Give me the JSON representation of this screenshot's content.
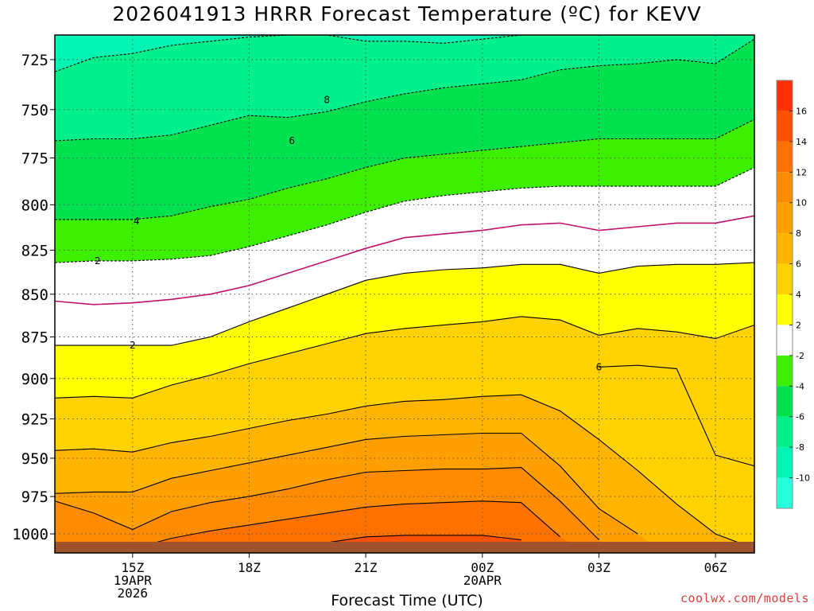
{
  "title": "2026041913 HRRR Forecast Temperature (ºC) for KEVV",
  "credit": "coolwx.com/models",
  "chart_data": {
    "type": "heatmap",
    "title": "2026041913 HRRR Forecast Temperature (ºC) for KEVV",
    "xlabel": "Forecast Time (UTC)",
    "ylabel": "",
    "x_unit": "hours from 13Z 19APR2026",
    "xlim": [
      0,
      18
    ],
    "ylim_hPa": [
      1013,
      713
    ],
    "y_scale": "log-pressure (decreasing upward)",
    "grid": true,
    "x_ticks": [
      {
        "x": 2,
        "lines": [
          "15Z",
          "19APR",
          "2026"
        ]
      },
      {
        "x": 5,
        "lines": [
          "18Z"
        ]
      },
      {
        "x": 8,
        "lines": [
          "21Z"
        ]
      },
      {
        "x": 11,
        "lines": [
          "00Z",
          "20APR"
        ]
      },
      {
        "x": 14,
        "lines": [
          "03Z"
        ]
      },
      {
        "x": 17,
        "lines": [
          "06Z"
        ]
      }
    ],
    "y_ticks": [
      725,
      750,
      775,
      800,
      825,
      850,
      875,
      900,
      925,
      950,
      975,
      1000
    ],
    "colorbar": {
      "labels": [
        "16",
        "14",
        "12",
        "10",
        "8",
        "6",
        "4",
        "2",
        "-2",
        "-4",
        "-6",
        "-8",
        "-10"
      ],
      "bands": [
        {
          "lo": 16,
          "hi": 18,
          "color": "#ff3200"
        },
        {
          "lo": 14,
          "hi": 16,
          "color": "#ff5000"
        },
        {
          "lo": 12,
          "hi": 14,
          "color": "#ff7200"
        },
        {
          "lo": 10,
          "hi": 12,
          "color": "#ff8c00"
        },
        {
          "lo": 8,
          "hi": 10,
          "color": "#ffa000"
        },
        {
          "lo": 6,
          "hi": 8,
          "color": "#ffb400"
        },
        {
          "lo": 4,
          "hi": 6,
          "color": "#ffd200"
        },
        {
          "lo": 2,
          "hi": 4,
          "color": "#ffff00"
        },
        {
          "lo": -2,
          "hi": 2,
          "color": "#ffffff"
        },
        {
          "lo": -4,
          "hi": -2,
          "color": "#3cf000"
        },
        {
          "lo": -6,
          "hi": -4,
          "color": "#00e150"
        },
        {
          "lo": -8,
          "hi": -6,
          "color": "#00f08c"
        },
        {
          "lo": -10,
          "hi": -8,
          "color": "#00f5b4"
        },
        {
          "lo": -12,
          "hi": -10,
          "color": "#28ffdc"
        }
      ]
    },
    "ground_color": "#a0522d",
    "contour_x": [
      0,
      1,
      2,
      3,
      4,
      5,
      6,
      7,
      8,
      9,
      10,
      11,
      12,
      13,
      14,
      15,
      16,
      17,
      18
    ],
    "contours": [
      {
        "value": 14,
        "style": "solid",
        "color": "#000000",
        "p": [
          null,
          null,
          null,
          null,
          null,
          null,
          null,
          1006,
          1002,
          1001,
          1001,
          1001,
          1004,
          null,
          null,
          null,
          null,
          null,
          null
        ]
      },
      {
        "value": 12,
        "style": "solid",
        "color": "#000000",
        "p": [
          null,
          null,
          1010,
          1003,
          998,
          994,
          990,
          986,
          982,
          980,
          979,
          978,
          979,
          1002,
          null,
          null,
          null,
          null,
          null
        ]
      },
      {
        "value": 10,
        "style": "solid",
        "color": "#000000",
        "p": [
          978,
          986,
          997,
          985,
          979,
          975,
          970,
          964,
          959,
          958,
          957,
          957,
          956,
          978,
          1004,
          null,
          null,
          null,
          null
        ]
      },
      {
        "value": 8,
        "style": "solid",
        "color": "#000000",
        "p": [
          973,
          972,
          972,
          963,
          958,
          953,
          948,
          943,
          938,
          936,
          935,
          934,
          934,
          955,
          983,
          1000,
          null,
          null,
          null
        ]
      },
      {
        "value": 6,
        "style": "solid",
        "color": "#000000",
        "p": [
          945,
          944,
          946,
          940,
          936,
          931,
          926,
          922,
          917,
          914,
          913,
          911,
          910,
          920,
          938,
          958,
          980,
          1000,
          1010
        ]
      },
      {
        "value": 6,
        "style": "solid",
        "color": "#000000",
        "p": [
          null,
          null,
          null,
          null,
          null,
          null,
          null,
          null,
          null,
          null,
          null,
          null,
          null,
          null,
          893,
          892,
          894,
          948,
          955
        ]
      },
      {
        "value": 4,
        "style": "solid",
        "color": "#000000",
        "p": [
          912,
          911,
          912,
          904,
          898,
          891,
          885,
          879,
          873,
          870,
          868,
          866,
          863,
          865,
          874,
          870,
          872,
          876,
          868
        ]
      },
      {
        "value": 2,
        "style": "solid",
        "color": "#000000",
        "p": [
          880,
          880,
          880,
          880,
          875,
          866,
          858,
          850,
          842,
          838,
          836,
          835,
          833,
          833,
          838,
          834,
          833,
          833,
          832
        ]
      },
      {
        "value": 0,
        "style": "solid",
        "color": "#c0106a",
        "p": [
          854,
          856,
          855,
          853,
          850,
          845,
          838,
          831,
          824,
          818,
          816,
          814,
          811,
          810,
          814,
          812,
          810,
          810,
          806
        ]
      },
      {
        "value": -2,
        "style": "dashed",
        "color": "#000000",
        "p": [
          832,
          831,
          831,
          830,
          828,
          823,
          817,
          811,
          804,
          798,
          795,
          793,
          791,
          790,
          790,
          790,
          790,
          790,
          780
        ]
      },
      {
        "value": -4,
        "style": "dashed",
        "color": "#000000",
        "p": [
          808,
          808,
          808,
          806,
          801,
          797,
          791,
          786,
          780,
          775,
          773,
          771,
          769,
          767,
          765,
          765,
          765,
          765,
          755
        ]
      },
      {
        "value": -6,
        "style": "dashed",
        "color": "#000000",
        "p": [
          766,
          765,
          765,
          763,
          758,
          753,
          754,
          751,
          746,
          742,
          739,
          737,
          735,
          730,
          728,
          727,
          725,
          727,
          715
        ]
      },
      {
        "value": -8,
        "style": "dashed",
        "color": "#000000",
        "p": [
          731,
          724,
          722,
          718,
          716,
          714,
          713,
          713,
          716,
          716,
          717,
          715,
          713,
          713,
          713,
          713,
          713,
          713,
          713
        ]
      }
    ],
    "contour_labels": [
      {
        "text": "8",
        "x": 7.0,
        "p": 745
      },
      {
        "text": "6",
        "x": 6.1,
        "p": 766
      },
      {
        "text": "4",
        "x": 2.1,
        "p": 809
      },
      {
        "text": "2",
        "x": 1.1,
        "p": 831
      },
      {
        "text": "2",
        "x": 2.0,
        "p": 880
      },
      {
        "text": "6",
        "x": 14.0,
        "p": 893
      }
    ]
  }
}
